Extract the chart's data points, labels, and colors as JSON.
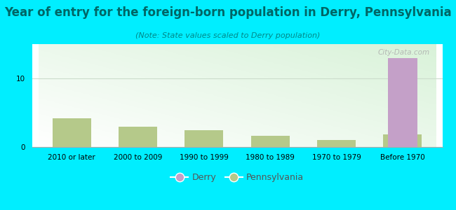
{
  "title": "Year of entry for the foreign-born population in Derry, Pennsylvania",
  "subtitle": "(Note: State values scaled to Derry population)",
  "categories": [
    "2010 or later",
    "2000 to 2009",
    "1990 to 1999",
    "1980 to 1989",
    "1970 to 1979",
    "Before 1970"
  ],
  "derry_values": [
    0,
    0,
    0,
    0,
    0,
    13
  ],
  "pennsylvania_values": [
    4.2,
    3.0,
    2.5,
    1.6,
    1.0,
    1.8
  ],
  "derry_color": "#c4a0c8",
  "pennsylvania_color": "#b5c98a",
  "bg_outer": "#00eeff",
  "ylim": [
    0,
    15
  ],
  "yticks": [
    0,
    10
  ],
  "bar_width": 0.45,
  "title_fontsize": 12,
  "subtitle_fontsize": 8,
  "tick_fontsize": 7.5,
  "legend_fontsize": 9,
  "title_color": "#006666",
  "subtitle_color": "#008888",
  "grid_color": "#ccddcc"
}
